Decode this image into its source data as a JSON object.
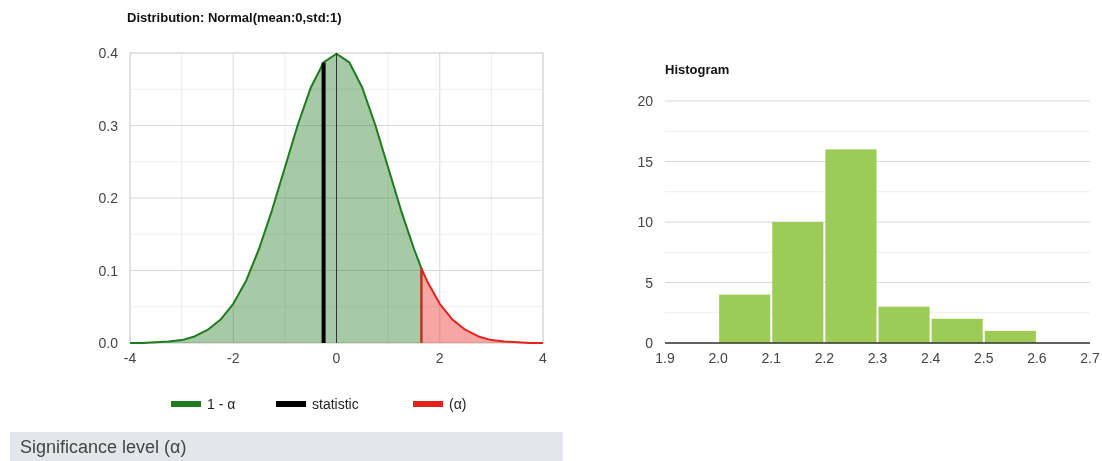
{
  "chart_data": [
    {
      "type": "area",
      "title": "Distribution: Normal(mean:0,std:1)",
      "xlim": [
        -4,
        4
      ],
      "ylim": [
        0,
        0.4
      ],
      "xticks": [
        -4,
        {
          "value": -3,
          "label": null
        },
        -2,
        {
          "value": -1,
          "label": null
        },
        0,
        {
          "value": 1,
          "label": null
        },
        2,
        {
          "value": 3,
          "label": null
        },
        4
      ],
      "yticks": [
        {
          "value": 0,
          "label": "0.0"
        },
        {
          "value": 0.05,
          "label": null
        },
        0.1,
        {
          "value": 0.15,
          "label": null
        },
        0.2,
        {
          "value": 0.25,
          "label": null
        },
        0.3,
        {
          "value": 0.35,
          "label": null
        },
        0.4
      ],
      "grid": true,
      "legend": "bottom",
      "series": [
        {
          "name": "1 - α",
          "type": "area",
          "color": "#1e7b1e",
          "x": [
            -4,
            -3.75,
            -3.5,
            -3.25,
            -3,
            -2.75,
            -2.5,
            -2.25,
            -2,
            -1.75,
            -1.5,
            -1.25,
            -1,
            -0.75,
            -0.5,
            -0.25,
            0,
            0.25,
            0.5,
            0.75,
            1,
            1.25,
            1.5,
            1.645
          ],
          "values": [
            0,
            0,
            0.001,
            0.002,
            0.004,
            0.009,
            0.018,
            0.032,
            0.054,
            0.086,
            0.13,
            0.183,
            0.242,
            0.301,
            0.352,
            0.387,
            0.399,
            0.387,
            0.352,
            0.301,
            0.242,
            0.183,
            0.13,
            0.103
          ]
        },
        {
          "name": "statistic",
          "type": "line",
          "color": "#000000",
          "x": [
            -0.25,
            -0.25
          ],
          "values": [
            0,
            0.387
          ]
        },
        {
          "name": "(α)",
          "type": "area",
          "color": "#e8211c",
          "x": [
            1.645,
            1.75,
            2,
            2.25,
            2.5,
            2.75,
            3,
            3.25,
            3.5,
            3.75,
            4
          ],
          "values": [
            0.103,
            0.086,
            0.054,
            0.032,
            0.018,
            0.009,
            0.004,
            0.002,
            0.001,
            0,
            0
          ]
        }
      ],
      "ref_lines": [
        {
          "axis": "x",
          "value": 0,
          "color": "#333333"
        }
      ],
      "annotations": [
        "Significance level (α)"
      ]
    },
    {
      "type": "histogram",
      "title": "Histogram",
      "bins": [
        2.0,
        2.1,
        2.2,
        2.3,
        2.4,
        2.5,
        2.6
      ],
      "values": [
        4,
        10,
        16,
        3,
        2,
        1
      ],
      "color": "#9ccc55",
      "xlim": [
        1.9,
        2.7
      ],
      "xticks": [
        1.9,
        {
          "value": 2,
          "label": "2.0"
        },
        2.1,
        2.2,
        2.3,
        2.4,
        2.5,
        2.6,
        2.7
      ],
      "ylim": [
        0,
        20
      ],
      "yticks": [
        0,
        {
          "value": 2.5,
          "label": null
        },
        5,
        {
          "value": 7.5,
          "label": null
        },
        10,
        {
          "value": 12.5,
          "label": null
        },
        15,
        {
          "value": 17.5,
          "label": null
        },
        20
      ],
      "grid": "y"
    }
  ]
}
